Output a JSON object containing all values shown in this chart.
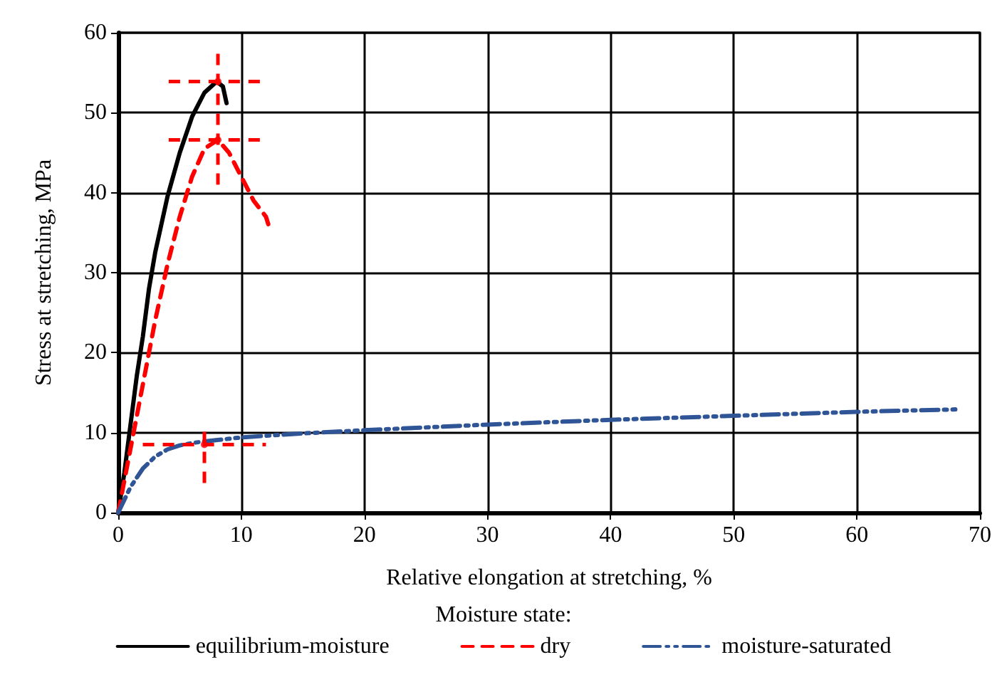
{
  "chart_data": {
    "type": "line",
    "xlabel": "Relative elongation at stretching, %",
    "ylabel": "Stress at stretching, MPa",
    "legend_title": "Moisture state:",
    "legend": "bottom",
    "grid": true,
    "marker": "none",
    "xlim": [
      0,
      70
    ],
    "xticks": [
      0,
      10,
      20,
      30,
      40,
      50,
      60,
      70
    ],
    "ylim": [
      0,
      60
    ],
    "yticks": [
      0,
      10,
      20,
      30,
      40,
      50,
      60
    ],
    "series": [
      {
        "name": "equilibrium-moisture",
        "color": "#000000",
        "line_style": "solid",
        "x": [
          0,
          0.5,
          1,
          1.5,
          2,
          2.5,
          3,
          4,
          5,
          6,
          7,
          8,
          8.5,
          8.8
        ],
        "values": [
          0,
          5,
          11,
          17,
          22,
          28,
          32.5,
          39.5,
          45,
          49.5,
          52.5,
          53.9,
          53.3,
          51.2
        ]
      },
      {
        "name": "dry",
        "color": "#ff0000",
        "line_style": "dashed",
        "x": [
          0,
          1,
          2,
          3,
          4,
          5,
          6,
          7,
          8.1,
          9,
          10,
          11,
          12,
          12.3
        ],
        "values": [
          0,
          8,
          16,
          24,
          31,
          37,
          42,
          45.5,
          46.6,
          45,
          42,
          39,
          37,
          35.5
        ]
      },
      {
        "name": "moisture-saturated",
        "color": "#2f5597",
        "line_style": "dashdot",
        "x": [
          0,
          1,
          2,
          3,
          4,
          5,
          6,
          7,
          10,
          15,
          20,
          30,
          40,
          50,
          60,
          68
        ],
        "values": [
          0,
          3.2,
          5.5,
          7,
          7.9,
          8.4,
          8.7,
          8.9,
          9.4,
          9.9,
          10.3,
          11,
          11.6,
          12.1,
          12.6,
          12.9
        ]
      },
      {
        "type": "scatter",
        "marker": "circle",
        "color": "#ff0000",
        "x": [
          8.1,
          8.1,
          7
        ],
        "values": [
          53.9,
          46.6,
          8.5
        ],
        "errors": [
          [
            41,
            57.5
          ],
          null,
          [
            3.7,
            10.5
          ]
        ],
        "xerrors": [
          4,
          4,
          5
        ]
      }
    ]
  }
}
